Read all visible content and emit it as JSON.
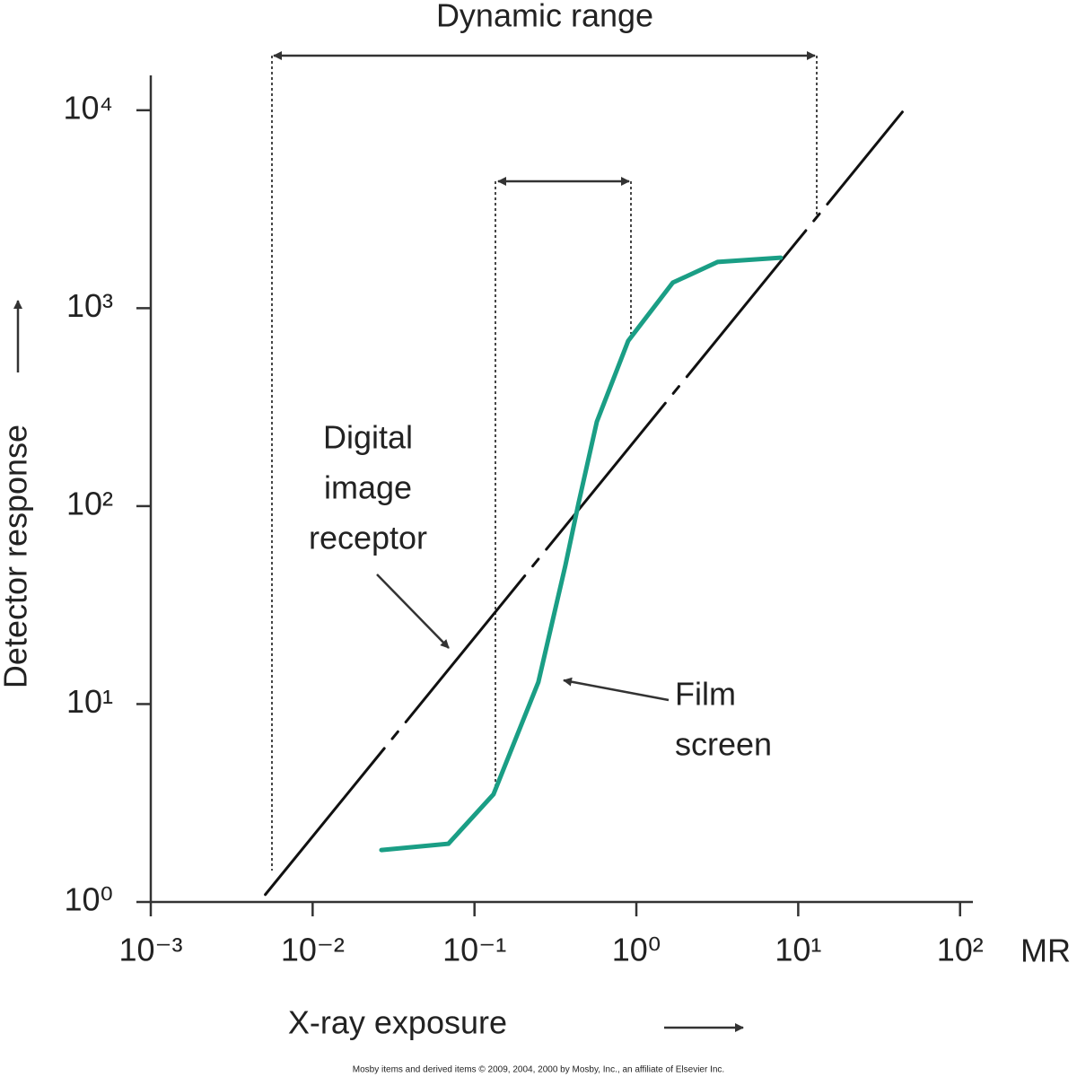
{
  "chart_data": {
    "type": "line",
    "title": "Dynamic range",
    "x_label": "X-ray exposure",
    "y_label": "Detector response",
    "x_unit": "MR",
    "xscale": "log",
    "yscale": "log",
    "xlim": [
      0.001,
      120
    ],
    "ylim": [
      1,
      15000
    ],
    "xticks": [
      {
        "value": 0.001,
        "label": "10⁻³"
      },
      {
        "value": 0.01,
        "label": "10⁻²"
      },
      {
        "value": 0.1,
        "label": "10⁻¹"
      },
      {
        "value": 1,
        "label": "10⁰"
      },
      {
        "value": 10,
        "label": "10¹"
      },
      {
        "value": 100,
        "label": "10²"
      }
    ],
    "yticks": [
      {
        "value": 1,
        "label": "10⁰"
      },
      {
        "value": 10,
        "label": "10¹"
      },
      {
        "value": 100,
        "label": "10²"
      },
      {
        "value": 1000,
        "label": "10³"
      },
      {
        "value": 10000,
        "label": "10⁴"
      }
    ],
    "series": [
      {
        "color": "#111111",
        "x": [
          0.0051,
          44
        ],
        "values": [
          1.09,
          9800
        ]
      },
      {
        "color": "#1a9e85",
        "x": [
          0.0266,
          0.069,
          0.131,
          0.248,
          0.364,
          0.44,
          0.57,
          0.89,
          1.68,
          3.18,
          7.8
        ],
        "values": [
          1.83,
          1.97,
          3.5,
          12.9,
          50,
          104,
          267,
          683,
          1346,
          1713,
          1800
        ]
      }
    ],
    "annotations": {
      "digital": [
        "Digital",
        "image",
        "receptor"
      ],
      "film": [
        "Film",
        "screen"
      ]
    },
    "footer": "Mosby items and derived items © 2009, 2004, 2000 by Mosby, Inc., an affiliate of Elsevier Inc."
  }
}
